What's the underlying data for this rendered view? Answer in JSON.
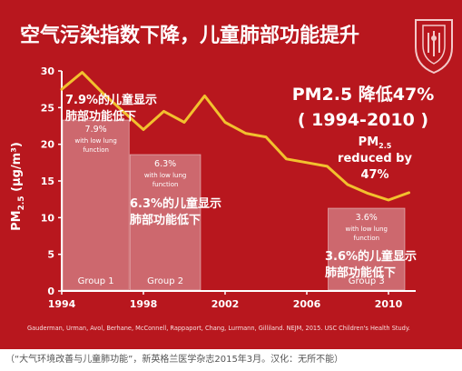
{
  "title": "空气污染指数下降，儿童肺部功能提升",
  "logo_icon": "university-seal-icon",
  "colors": {
    "background": "#b8171e",
    "line": "#f2c12e",
    "box_fill": "#e9dadd",
    "text": "#ffffff"
  },
  "headline": {
    "line1": "PM2.5 降低47%",
    "line2": "( 1994-2010 )",
    "sub_label": "PM",
    "sub_sub": "2.5",
    "sub_line2": "reduced by",
    "sub_line3": "47%"
  },
  "groups": [
    {
      "name": "Group 1",
      "pct": "7.9%",
      "desc1": "with low lung",
      "desc2": "function",
      "cn1": "7.9%的儿童显示",
      "cn2": "肺部功能低下"
    },
    {
      "name": "Group 2",
      "pct": "6.3%",
      "desc1": "with low lung",
      "desc2": "function",
      "cn1": "6.3%的儿童显示",
      "cn2": "肺部功能低下"
    },
    {
      "name": "Group 3",
      "pct": "3.6%",
      "desc1": "with low lung",
      "desc2": "function",
      "cn1": "3.6%的儿童显示",
      "cn2": "肺部功能低下"
    }
  ],
  "source": "Gauderman, Urman, Avol, Berhane, McConnell, Rappaport, Chang, Lurmann, Gilliland. NEJM, 2015. USC Children's Health Study.",
  "caption": "（“大气环境改善与儿童肺功能”，新英格兰医学杂志2015年3月。汉化：无所不能）",
  "chart_data": {
    "type": "line",
    "title": "空气污染指数下降，儿童肺部功能提升",
    "ylabel": "PM2.5 (μg/m³)",
    "xlabel": "",
    "xlim": [
      1994,
      2011.5
    ],
    "ylim": [
      0,
      30
    ],
    "x_ticks": [
      1994,
      1998,
      2002,
      2006,
      2010
    ],
    "y_ticks": [
      0,
      5,
      10,
      15,
      20,
      25,
      30
    ],
    "grid": false,
    "series": [
      {
        "x": [
          1994,
          1995,
          1996,
          1997,
          1998,
          1999,
          2000,
          2001,
          2002,
          2003,
          2004,
          2005,
          2006,
          2007,
          2008,
          2009,
          2010,
          2011
        ],
        "values": [
          27.5,
          29.8,
          27.0,
          24.5,
          22.0,
          24.5,
          23.0,
          26.6,
          23.0,
          21.5,
          21.0,
          18.0,
          17.5,
          17.0,
          14.5,
          13.3,
          12.4,
          13.4
        ]
      }
    ],
    "bands": [
      {
        "label": "Group 1",
        "x": [
          1994,
          1997.3
        ],
        "value_pct": 7.9
      },
      {
        "label": "Group 2",
        "x": [
          1997.3,
          2000.8
        ],
        "value_pct": 6.3
      },
      {
        "label": "Group 3",
        "x": [
          2007,
          2010.8
        ],
        "value_pct": 3.6
      }
    ]
  }
}
